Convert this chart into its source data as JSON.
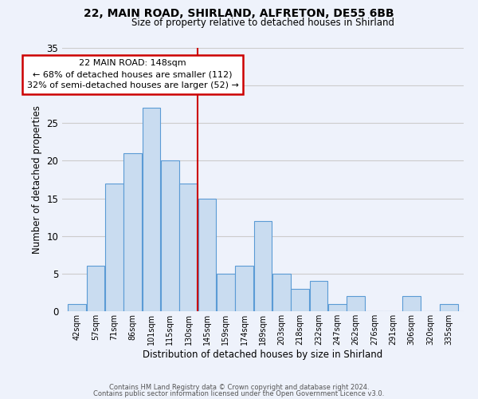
{
  "title1": "22, MAIN ROAD, SHIRLAND, ALFRETON, DE55 6BB",
  "title2": "Size of property relative to detached houses in Shirland",
  "xlabel": "Distribution of detached houses by size in Shirland",
  "ylabel": "Number of detached properties",
  "bin_labels": [
    "42sqm",
    "57sqm",
    "71sqm",
    "86sqm",
    "101sqm",
    "115sqm",
    "130sqm",
    "145sqm",
    "159sqm",
    "174sqm",
    "189sqm",
    "203sqm",
    "218sqm",
    "232sqm",
    "247sqm",
    "262sqm",
    "276sqm",
    "291sqm",
    "306sqm",
    "320sqm",
    "335sqm"
  ],
  "bar_heights": [
    1,
    6,
    17,
    21,
    27,
    20,
    17,
    15,
    5,
    6,
    12,
    5,
    3,
    4,
    1,
    2,
    0,
    0,
    2,
    0,
    1
  ],
  "bar_color": "#c9dcf0",
  "bar_edge_color": "#5b9bd5",
  "vline_color": "#cc0000",
  "ylim": [
    0,
    35
  ],
  "yticks": [
    0,
    5,
    10,
    15,
    20,
    25,
    30,
    35
  ],
  "grid_color": "#cccccc",
  "background_color": "#eef2fb",
  "annotation_title": "22 MAIN ROAD: 148sqm",
  "annotation_line1": "← 68% of detached houses are smaller (112)",
  "annotation_line2": "32% of semi-detached houses are larger (52) →",
  "footer1": "Contains HM Land Registry data © Crown copyright and database right 2024.",
  "footer2": "Contains public sector information licensed under the Open Government Licence v3.0."
}
